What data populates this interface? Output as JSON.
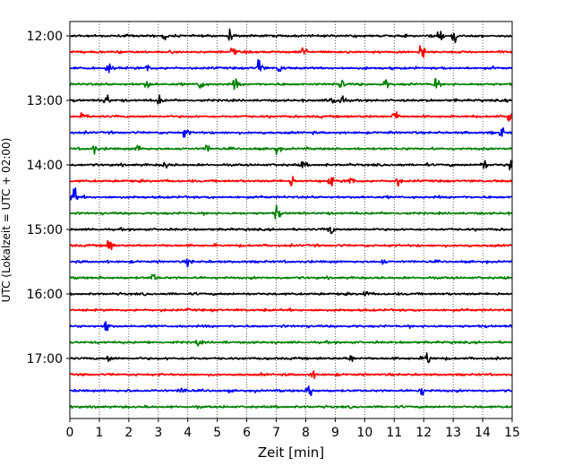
{
  "chart_data": {
    "type": "line",
    "xlabel": "Zeit  [min]",
    "ylabel": "UTC (Lokalzeit = UTC + 02:00)",
    "xlim": [
      0,
      15
    ],
    "x_ticks": [
      0,
      1,
      2,
      3,
      4,
      5,
      6,
      7,
      8,
      9,
      10,
      11,
      12,
      13,
      14,
      15
    ],
    "grid": "vertical dotted",
    "colors": [
      "#000000",
      "#ff0000",
      "#0000ff",
      "#008000"
    ],
    "y_ticks": [
      {
        "label": "12:00",
        "trace": 0
      },
      {
        "label": "13:00",
        "trace": 4
      },
      {
        "label": "14:00",
        "trace": 8
      },
      {
        "label": "15:00",
        "trace": 12
      },
      {
        "label": "16:00",
        "trace": 16
      },
      {
        "label": "17:00",
        "trace": 20
      }
    ],
    "series": [
      {
        "start": "12:00",
        "color": "#000000",
        "events": [
          [
            3.2,
            0.5
          ],
          [
            5.4,
            0.9
          ],
          [
            12.5,
            1.3
          ],
          [
            13.0,
            0.8
          ]
        ]
      },
      {
        "start": "12:15",
        "color": "#ff0000",
        "events": [
          [
            5.5,
            0.6
          ],
          [
            7.9,
            0.8
          ],
          [
            11.9,
            1.4
          ]
        ]
      },
      {
        "start": "12:30",
        "color": "#0000ff",
        "events": [
          [
            1.3,
            1.0
          ],
          [
            2.6,
            0.6
          ],
          [
            6.4,
            1.2
          ],
          [
            7.1,
            0.7
          ]
        ]
      },
      {
        "start": "12:45",
        "color": "#008000",
        "events": [
          [
            2.6,
            0.6
          ],
          [
            4.4,
            1.0
          ],
          [
            5.6,
            0.9
          ],
          [
            9.2,
            0.7
          ],
          [
            10.7,
            0.6
          ],
          [
            12.4,
            0.9
          ]
        ]
      },
      {
        "start": "13:00",
        "color": "#000000",
        "events": [
          [
            1.2,
            1.0
          ],
          [
            3.0,
            0.6
          ],
          [
            8.9,
            0.9
          ],
          [
            9.2,
            0.8
          ]
        ]
      },
      {
        "start": "13:15",
        "color": "#ff0000",
        "events": [
          [
            0.4,
            0.7
          ],
          [
            11.0,
            1.0
          ],
          [
            14.9,
            1.4
          ]
        ]
      },
      {
        "start": "13:30",
        "color": "#0000ff",
        "events": [
          [
            3.9,
            0.8
          ],
          [
            14.6,
            0.7
          ]
        ]
      },
      {
        "start": "13:45",
        "color": "#008000",
        "events": [
          [
            0.8,
            0.6
          ],
          [
            2.3,
            0.6
          ],
          [
            4.6,
            0.6
          ],
          [
            7.0,
            0.6
          ]
        ]
      },
      {
        "start": "14:00",
        "color": "#000000",
        "events": [
          [
            3.2,
            0.5
          ],
          [
            7.9,
            0.5
          ],
          [
            14.0,
            0.9
          ],
          [
            14.9,
            1.0
          ]
        ]
      },
      {
        "start": "14:15",
        "color": "#ff0000",
        "events": [
          [
            7.5,
            0.8
          ],
          [
            8.8,
            0.8
          ],
          [
            9.5,
            0.9
          ],
          [
            11.1,
            0.6
          ]
        ]
      },
      {
        "start": "14:30",
        "color": "#0000ff",
        "events": [
          [
            0.1,
            1.6
          ]
        ]
      },
      {
        "start": "14:45",
        "color": "#008000",
        "events": [
          [
            7.0,
            1.0
          ]
        ]
      },
      {
        "start": "15:00",
        "color": "#000000",
        "events": [
          [
            8.8,
            0.9
          ]
        ]
      },
      {
        "start": "15:15",
        "color": "#ff0000",
        "events": [
          [
            1.3,
            1.2
          ]
        ]
      },
      {
        "start": "15:30",
        "color": "#0000ff",
        "events": [
          [
            4.0,
            0.5
          ],
          [
            10.6,
            0.4
          ]
        ]
      },
      {
        "start": "15:45",
        "color": "#008000",
        "events": [
          [
            2.8,
            0.6
          ]
        ]
      },
      {
        "start": "16:00",
        "color": "#000000",
        "events": [
          [
            10.0,
            0.4
          ]
        ]
      },
      {
        "start": "16:15",
        "color": "#ff0000",
        "events": []
      },
      {
        "start": "16:30",
        "color": "#0000ff",
        "events": [
          [
            1.2,
            1.0
          ]
        ]
      },
      {
        "start": "16:45",
        "color": "#008000",
        "events": [
          [
            4.3,
            0.4
          ]
        ]
      },
      {
        "start": "17:00",
        "color": "#000000",
        "events": [
          [
            1.3,
            0.5
          ],
          [
            9.5,
            0.5
          ],
          [
            12.1,
            1.1
          ]
        ]
      },
      {
        "start": "17:15",
        "color": "#ff0000",
        "events": [
          [
            8.2,
            0.5
          ]
        ]
      },
      {
        "start": "17:30",
        "color": "#0000ff",
        "events": [
          [
            3.8,
            0.6
          ],
          [
            8.1,
            1.2
          ],
          [
            11.9,
            0.6
          ]
        ]
      },
      {
        "start": "17:45",
        "color": "#008000",
        "events": []
      }
    ]
  }
}
